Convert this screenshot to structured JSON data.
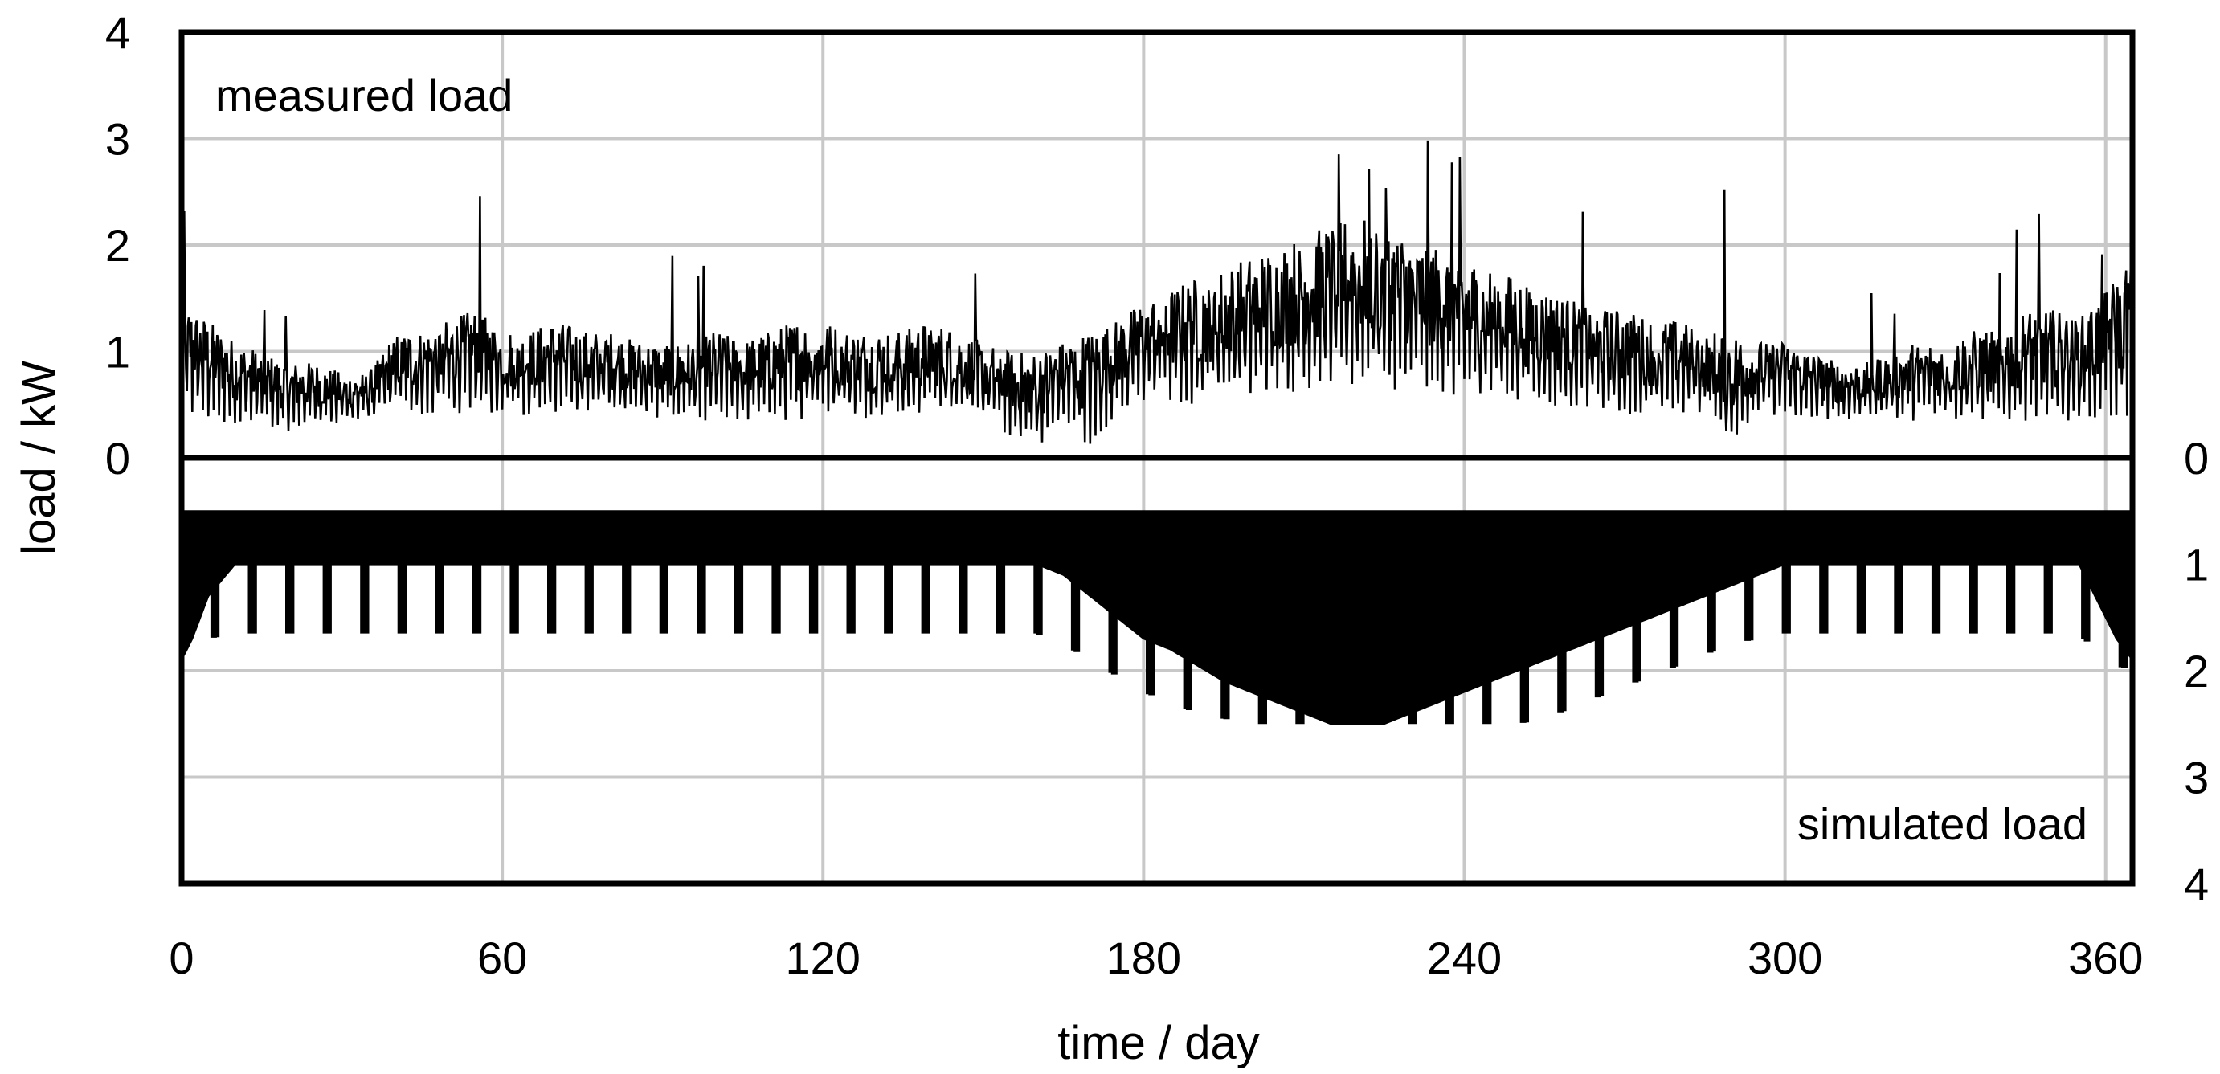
{
  "chart_data": {
    "type": "line",
    "xlabel": "time / day",
    "ylabel": "load / kW",
    "xlim": [
      0,
      365
    ],
    "xticks": [
      0,
      60,
      120,
      180,
      240,
      300,
      360
    ],
    "grid": true,
    "panels": [
      {
        "label": "measured load",
        "ylim": [
          0,
          4
        ],
        "yticks": [
          0,
          1,
          2,
          3,
          4
        ],
        "y_axis_side": "left",
        "y_direction": "up",
        "series": [
          {
            "x": [
              0,
              5,
              10,
              15,
              20,
              25,
              30,
              35,
              40,
              45,
              50,
              55,
              60,
              65,
              70,
              75,
              80,
              85,
              90,
              95,
              100,
              105,
              110,
              115,
              120,
              125,
              130,
              135,
              140,
              145,
              150,
              155,
              160,
              165,
              170,
              175,
              180,
              185,
              190,
              195,
              200,
              205,
              210,
              215,
              220,
              225,
              230,
              235,
              240,
              245,
              250,
              255,
              260,
              265,
              270,
              275,
              280,
              285,
              290,
              295,
              300,
              305,
              310,
              315,
              320,
              325,
              330,
              335,
              340,
              345,
              350,
              355,
              360,
              365
            ],
            "daily_min": [
              0.4,
              0.35,
              0.3,
              0.3,
              0.25,
              0.3,
              0.3,
              0.35,
              0.4,
              0.4,
              0.4,
              0.45,
              0.4,
              0.4,
              0.4,
              0.4,
              0.4,
              0.4,
              0.35,
              0.35,
              0.35,
              0.35,
              0.35,
              0.35,
              0.4,
              0.4,
              0.35,
              0.35,
              0.4,
              0.4,
              0.35,
              0.2,
              0.1,
              0.3,
              0.1,
              0.4,
              0.5,
              0.5,
              0.5,
              0.55,
              0.55,
              0.6,
              0.6,
              0.65,
              0.65,
              0.65,
              0.6,
              0.6,
              0.55,
              0.55,
              0.5,
              0.5,
              0.45,
              0.45,
              0.4,
              0.4,
              0.4,
              0.4,
              0.1,
              0.4,
              0.4,
              0.35,
              0.35,
              0.35,
              0.35,
              0.35,
              0.35,
              0.35,
              0.35,
              0.35,
              0.35,
              0.35,
              0.35,
              0.4
            ],
            "daily_max": [
              2.4,
              2.8,
              1.7,
              1.5,
              1.4,
              1.9,
              0.9,
              1.2,
              2.3,
              1.6,
              2.0,
              2.9,
              2.3,
              1.9,
              2.2,
              1.7,
              2.0,
              1.6,
              2.2,
              1.6,
              2.0,
              1.7,
              1.9,
              2.4,
              2.1,
              1.7,
              2.0,
              2.2,
              2.3,
              2.0,
              1.7,
              1.4,
              1.5,
              1.9,
              2.2,
              2.1,
              2.8,
              2.2,
              2.6,
              2.5,
              3.1,
              3.0,
              2.6,
              2.8,
              3.0,
              2.7,
              2.8,
              3.4,
              2.8,
              2.6,
              2.5,
              2.4,
              2.7,
              2.4,
              2.7,
              2.5,
              2.2,
              2.9,
              2.6,
              2.3,
              2.2,
              2.0,
              1.8,
              1.6,
              1.5,
              2.0,
              1.6,
              1.9,
              1.8,
              2.6,
              2.2,
              1.6,
              2.2,
              2.3
            ],
            "typical_daily_peak": [
              1.5,
              1.3,
              1.1,
              1.0,
              0.9,
              0.9,
              0.8,
              0.8,
              1.2,
              1.2,
              1.3,
              1.4,
              1.2,
              1.2,
              1.3,
              1.2,
              1.2,
              1.1,
              1.1,
              1.1,
              1.2,
              1.1,
              1.2,
              1.3,
              1.3,
              1.2,
              1.2,
              1.2,
              1.3,
              1.2,
              1.1,
              1.0,
              1.0,
              1.1,
              1.2,
              1.3,
              1.5,
              1.6,
              1.7,
              1.8,
              1.9,
              2.0,
              2.1,
              2.2,
              2.3,
              2.2,
              2.1,
              2.0,
              1.9,
              1.8,
              1.7,
              1.6,
              1.5,
              1.4,
              1.4,
              1.3,
              1.3,
              1.2,
              1.2,
              1.1,
              1.1,
              1.0,
              0.9,
              0.9,
              1.0,
              1.1,
              1.1,
              1.2,
              1.2,
              1.4,
              1.4,
              1.3,
              1.6,
              1.9
            ]
          }
        ]
      },
      {
        "label": "simulated load",
        "ylim": [
          0,
          4
        ],
        "yticks": [
          0,
          1,
          2,
          3,
          4
        ],
        "y_axis_side": "right",
        "y_direction": "down",
        "series": [
          {
            "baseload": 0.5,
            "x": [
              0,
              2,
              5,
              10,
              160,
              165,
              170,
              175,
              180,
              185,
              190,
              195,
              200,
              205,
              210,
              215,
              220,
              225,
              230,
              235,
              240,
              245,
              250,
              255,
              260,
              265,
              270,
              275,
              280,
              285,
              290,
              295,
              300,
              305,
              355,
              358,
              362,
              365
            ],
            "weekday_peak": [
              1.9,
              1.7,
              1.3,
              1.0,
              1.0,
              1.1,
              1.3,
              1.5,
              1.7,
              1.8,
              1.95,
              2.1,
              2.2,
              2.3,
              2.4,
              2.5,
              2.5,
              2.5,
              2.4,
              2.3,
              2.2,
              2.1,
              2.0,
              1.9,
              1.8,
              1.7,
              1.6,
              1.5,
              1.4,
              1.3,
              1.2,
              1.1,
              1.0,
              1.0,
              1.0,
              1.3,
              1.7,
              1.9
            ],
            "weekend_peak": [
              2.0,
              1.9,
              1.7,
              1.65,
              1.65,
              1.75,
              1.9,
              2.05,
              2.2,
              2.3,
              2.4,
              2.45,
              2.5,
              2.5,
              2.5,
              2.5,
              2.5,
              2.5,
              2.5,
              2.5,
              2.5,
              2.5,
              2.5,
              2.45,
              2.35,
              2.25,
              2.15,
              2.05,
              1.95,
              1.85,
              1.75,
              1.7,
              1.65,
              1.65,
              1.65,
              1.8,
              1.95,
              2.0
            ],
            "weekend_days_start": 6,
            "weekend_period": 7
          }
        ]
      }
    ]
  }
}
